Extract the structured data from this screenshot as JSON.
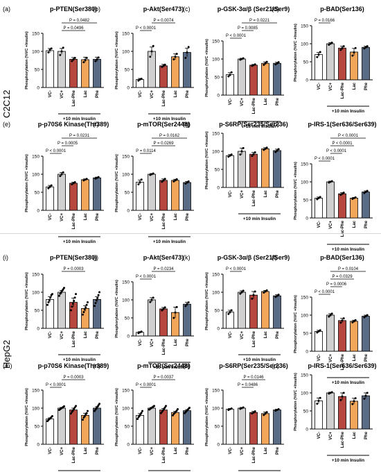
{
  "rows": {
    "c2c12": {
      "label": "C2C12"
    },
    "hepg2": {
      "label": "HepG2"
    }
  },
  "shared": {
    "ylabel": "Phosphorylation (%VC +Insulin)",
    "categories": [
      "VC-",
      "VC+",
      "Lac-Phe",
      "Lac",
      "Phe"
    ],
    "insulin_label": "+10 min Insulin"
  },
  "colors": {
    "bars": [
      "#ffffff",
      "#d0d0d0",
      "#b5473e",
      "#f2a65a",
      "#5a6b85"
    ],
    "dots": "#000000",
    "axis": "#000000"
  },
  "chart_data": [
    {
      "panel": "(a)",
      "type": "bar",
      "title": "p-PTEN(Ser380)",
      "ylim": [
        0,
        150
      ],
      "yticks": [
        0,
        50,
        100,
        150
      ],
      "values": [
        102,
        100,
        78,
        77,
        78
      ],
      "errors": [
        6,
        8,
        5,
        7,
        6
      ],
      "points": [
        [
          97,
          104,
          108
        ],
        [
          90,
          100,
          110
        ],
        [
          73,
          78,
          82
        ],
        [
          70,
          76,
          82
        ],
        [
          73,
          78,
          83
        ]
      ],
      "comparisons": [
        {
          "from": 1,
          "to": 4,
          "p": "P = 0.0482"
        },
        {
          "from": 1,
          "to": 3,
          "p": "P = 0.0496"
        }
      ]
    },
    {
      "panel": "(b)",
      "type": "bar",
      "title": "p-Akt(Ser473)",
      "ylim": [
        0,
        150
      ],
      "yticks": [
        0,
        50,
        100,
        150
      ],
      "values": [
        22,
        100,
        60,
        85,
        97
      ],
      "errors": [
        3,
        12,
        4,
        8,
        12
      ],
      "points": [
        [
          19,
          22,
          24
        ],
        [
          85,
          100,
          115
        ],
        [
          57,
          60,
          63
        ],
        [
          78,
          85,
          93
        ],
        [
          82,
          97,
          112
        ]
      ],
      "comparisons": [
        {
          "from": 1,
          "to": 3,
          "p": "P = 0.0074"
        },
        {
          "from": 0,
          "to": 1,
          "p": "P < 0.0001"
        }
      ]
    },
    {
      "panel": "(c)",
      "type": "bar",
      "title": "p-GSK-3α/β (Ser21/Ser9)",
      "ylim": [
        0,
        150
      ],
      "yticks": [
        0,
        50,
        100,
        150
      ],
      "values": [
        57,
        100,
        83,
        88,
        88
      ],
      "errors": [
        5,
        2,
        2,
        4,
        3
      ],
      "points": [
        [
          52,
          56,
          63
        ],
        [
          98,
          100,
          102
        ],
        [
          81,
          83,
          85
        ],
        [
          84,
          88,
          92
        ],
        [
          85,
          88,
          91
        ]
      ],
      "comparisons": [
        {
          "from": 1,
          "to": 4,
          "p": "P = 0.0221"
        },
        {
          "from": 1,
          "to": 2,
          "p": "P = 0.0085"
        },
        {
          "from": 0,
          "to": 1,
          "p": "P < 0.0001"
        }
      ]
    },
    {
      "panel": "(d)",
      "type": "bar",
      "title": "p-BAD(Ser136)",
      "ylim": [
        0,
        150
      ],
      "yticks": [
        0,
        50,
        100,
        150
      ],
      "values": [
        70,
        100,
        88,
        77,
        90
      ],
      "errors": [
        6,
        3,
        5,
        10,
        3
      ],
      "points": [
        [
          63,
          70,
          77
        ],
        [
          97,
          100,
          103
        ],
        [
          83,
          88,
          93
        ],
        [
          67,
          76,
          88
        ],
        [
          87,
          90,
          93
        ]
      ],
      "comparisons": [
        {
          "from": 0,
          "to": 1,
          "p": "P = 0.0166"
        }
      ]
    },
    {
      "panel": "(e)",
      "type": "bar",
      "title": "p-p70S6 Kinase(Thr389)",
      "ylim": [
        0,
        150
      ],
      "yticks": [
        0,
        50,
        100,
        150
      ],
      "values": [
        65,
        100,
        75,
        85,
        90
      ],
      "errors": [
        4,
        5,
        3,
        2,
        2
      ],
      "points": [
        [
          61,
          65,
          69
        ],
        [
          95,
          100,
          105
        ],
        [
          72,
          75,
          78
        ],
        [
          83,
          85,
          87
        ],
        [
          88,
          90,
          92
        ]
      ],
      "comparisons": [
        {
          "from": 1,
          "to": 4,
          "p": "P = 0.0231"
        },
        {
          "from": 1,
          "to": 2,
          "p": "P = 0.0005"
        },
        {
          "from": 0,
          "to": 1,
          "p": "P < 0.0001"
        }
      ]
    },
    {
      "panel": "(f)",
      "type": "bar",
      "title": "p-mTOR(Ser2448)",
      "ylim": [
        0,
        150
      ],
      "yticks": [
        0,
        50,
        100,
        150
      ],
      "values": [
        78,
        100,
        83,
        83,
        77
      ],
      "errors": [
        6,
        2,
        4,
        3,
        3
      ],
      "points": [
        [
          72,
          78,
          85
        ],
        [
          98,
          100,
          102
        ],
        [
          79,
          83,
          87
        ],
        [
          80,
          83,
          86
        ],
        [
          74,
          77,
          80
        ]
      ],
      "comparisons": [
        {
          "from": 1,
          "to": 4,
          "p": "P = 0.0162"
        },
        {
          "from": 1,
          "to": 3,
          "p": "P = 0.0269"
        },
        {
          "from": 0,
          "to": 1,
          "p": "P = 0.0114"
        }
      ]
    },
    {
      "panel": "(g)",
      "type": "bar",
      "title": "p-S6RP(Ser235/Ser236)",
      "ylim": [
        0,
        150
      ],
      "yticks": [
        0,
        50,
        100,
        150
      ],
      "values": [
        88,
        100,
        92,
        107,
        102
      ],
      "errors": [
        3,
        9,
        5,
        3,
        4
      ],
      "points": [
        [
          85,
          88,
          91
        ],
        [
          91,
          100,
          109
        ],
        [
          87,
          92,
          97
        ],
        [
          104,
          107,
          110
        ],
        [
          98,
          102,
          106
        ]
      ],
      "comparisons": []
    },
    {
      "panel": "(h)",
      "type": "bar",
      "title": "p-IRS-1(Ser636/Ser639)",
      "ylim": [
        0,
        150
      ],
      "yticks": [
        0,
        50,
        100,
        150
      ],
      "values": [
        55,
        100,
        67,
        55,
        72
      ],
      "errors": [
        3,
        2,
        3,
        2,
        3
      ],
      "points": [
        [
          52,
          55,
          58
        ],
        [
          98,
          100,
          102
        ],
        [
          64,
          67,
          70
        ],
        [
          53,
          55,
          57
        ],
        [
          69,
          72,
          75
        ]
      ],
      "comparisons": [
        {
          "from": 1,
          "to": 4,
          "p": "P < 0.0001"
        },
        {
          "from": 1,
          "to": 3,
          "p": "P < 0.0001"
        },
        {
          "from": 1,
          "to": 2,
          "p": "P < 0.0001"
        },
        {
          "from": 0,
          "to": 1,
          "p": "P < 0.0001"
        }
      ]
    },
    {
      "panel": "(i)",
      "type": "bar",
      "title": "p-PTEN(Ser380)",
      "ylim": [
        0,
        150
      ],
      "yticks": [
        0,
        50,
        100,
        150
      ],
      "values": [
        80,
        100,
        72,
        55,
        80
      ],
      "errors": [
        8,
        5,
        12,
        8,
        8
      ],
      "points": [
        [
          65,
          72,
          78,
          85,
          92,
          95
        ],
        [
          90,
          96,
          100,
          104,
          108,
          112
        ],
        [
          50,
          60,
          68,
          76,
          85,
          95
        ],
        [
          38,
          45,
          52,
          58,
          65,
          72
        ],
        [
          62,
          70,
          78,
          84,
          92,
          100
        ]
      ],
      "comparisons": [
        {
          "from": 1,
          "to": 3,
          "p": "P = 0.0003"
        }
      ]
    },
    {
      "panel": "(j)",
      "type": "bar",
      "title": "p-Akt(Ser473)",
      "ylim": [
        0,
        150
      ],
      "yticks": [
        0,
        50,
        100,
        150
      ],
      "values": [
        10,
        100,
        75,
        65,
        88
      ],
      "errors": [
        2,
        6,
        4,
        15,
        5
      ],
      "points": [
        [
          8,
          10,
          12
        ],
        [
          94,
          100,
          106
        ],
        [
          71,
          75,
          79
        ],
        [
          50,
          65,
          80
        ],
        [
          83,
          88,
          93
        ]
      ],
      "comparisons": [
        {
          "from": 1,
          "to": 3,
          "p": "P = 0.0234"
        },
        {
          "from": 0,
          "to": 1,
          "p": "P < 0.0001"
        }
      ]
    },
    {
      "panel": "(k)",
      "type": "bar",
      "title": "p-GSK-3α/β (Ser21/Ser9)",
      "ylim": [
        0,
        150
      ],
      "yticks": [
        0,
        50,
        100,
        150
      ],
      "values": [
        45,
        100,
        92,
        102,
        90
      ],
      "errors": [
        5,
        4,
        10,
        3,
        3
      ],
      "points": [
        [
          40,
          45,
          50
        ],
        [
          96,
          100,
          104
        ],
        [
          82,
          92,
          102
        ],
        [
          99,
          102,
          105
        ],
        [
          87,
          90,
          93
        ]
      ],
      "comparisons": [
        {
          "from": 0,
          "to": 1,
          "p": "P < 0.0001"
        }
      ]
    },
    {
      "panel": "(l)",
      "type": "bar",
      "title": "p-BAD(Ser136)",
      "ylim": [
        0,
        150
      ],
      "yticks": [
        0,
        50,
        100,
        150
      ],
      "values": [
        55,
        100,
        85,
        83,
        97
      ],
      "errors": [
        3,
        4,
        6,
        3,
        3
      ],
      "points": [
        [
          52,
          55,
          58
        ],
        [
          96,
          100,
          104
        ],
        [
          79,
          85,
          91
        ],
        [
          80,
          83,
          86
        ],
        [
          94,
          97,
          100
        ]
      ],
      "comparisons": [
        {
          "from": 1,
          "to": 4,
          "p": "P = 0.0104"
        },
        {
          "from": 1,
          "to": 3,
          "p": "P = 0.0329"
        },
        {
          "from": 1,
          "to": 2,
          "p": "P = 0.0006"
        },
        {
          "from": 0,
          "to": 1,
          "p": "P < 0.0001"
        }
      ]
    },
    {
      "panel": "(m)",
      "type": "bar",
      "title": "p-p70S6 Kinase(Thr389)",
      "ylim": [
        0,
        150
      ],
      "yticks": [
        0,
        50,
        100,
        150
      ],
      "values": [
        70,
        100,
        95,
        80,
        100
      ],
      "errors": [
        3,
        2,
        5,
        6,
        4
      ],
      "points": [
        [
          64,
          67,
          70,
          72,
          75,
          78
        ],
        [
          95,
          97,
          99,
          101,
          103,
          105
        ],
        [
          85,
          90,
          94,
          98,
          102,
          106
        ],
        [
          68,
          74,
          78,
          82,
          86,
          92
        ],
        [
          92,
          96,
          100,
          104,
          108,
          112
        ]
      ],
      "comparisons": [
        {
          "from": 1,
          "to": 3,
          "p": "P = 0.0003"
        },
        {
          "from": 0,
          "to": 1,
          "p": "P < 0.0001"
        }
      ]
    },
    {
      "panel": "(n)",
      "type": "bar",
      "title": "p-mTOR(Ser2448)",
      "ylim": [
        0,
        150
      ],
      "yticks": [
        0,
        50,
        100,
        150
      ],
      "values": [
        80,
        100,
        95,
        88,
        93
      ],
      "errors": [
        5,
        2,
        4,
        3,
        3
      ],
      "points": [
        [
          70,
          75,
          79,
          83,
          87,
          92
        ],
        [
          96,
          98,
          100,
          102,
          104,
          106
        ],
        [
          86,
          90,
          94,
          98,
          102,
          106
        ],
        [
          80,
          84,
          87,
          90,
          93,
          97
        ],
        [
          86,
          89,
          92,
          95,
          98,
          101
        ]
      ],
      "comparisons": [
        {
          "from": 1,
          "to": 3,
          "p": "P = 0.0037"
        },
        {
          "from": 0,
          "to": 1,
          "p": "P < 0.0001"
        }
      ]
    },
    {
      "panel": "(o)",
      "type": "bar",
      "title": "p-S6RP(Ser235/Ser236)",
      "ylim": [
        0,
        150
      ],
      "yticks": [
        0,
        50,
        100,
        150
      ],
      "values": [
        97,
        100,
        88,
        85,
        95
      ],
      "errors": [
        2,
        2,
        3,
        4,
        2
      ],
      "points": [
        [
          95,
          97,
          99
        ],
        [
          98,
          100,
          102
        ],
        [
          85,
          88,
          91
        ],
        [
          81,
          85,
          89
        ],
        [
          93,
          95,
          97
        ]
      ],
      "comparisons": [
        {
          "from": 1,
          "to": 3,
          "p": "P = 0.0146"
        },
        {
          "from": 1,
          "to": 2,
          "p": "P = 0.0486"
        }
      ]
    },
    {
      "panel": "(p)",
      "type": "bar",
      "title": "p-IRS-1(Ser636/Ser639)",
      "ylim": [
        0,
        150
      ],
      "yticks": [
        0,
        50,
        100,
        150
      ],
      "values": [
        78,
        100,
        90,
        77,
        92
      ],
      "errors": [
        8,
        2,
        10,
        8,
        8
      ],
      "points": [
        [
          70,
          78,
          86
        ],
        [
          98,
          100,
          102
        ],
        [
          80,
          90,
          100
        ],
        [
          69,
          77,
          85
        ],
        [
          84,
          92,
          100
        ]
      ],
      "comparisons": []
    }
  ]
}
